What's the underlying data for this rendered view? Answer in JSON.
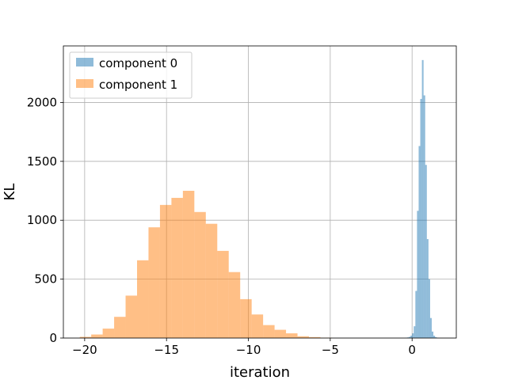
{
  "chart_data": {
    "type": "histogram",
    "title": "",
    "xlabel": "iteration",
    "ylabel": "KL",
    "xlim": [
      -21.3,
      2.7
    ],
    "ylim": [
      0,
      2480
    ],
    "xticks": [
      -20,
      -15,
      -10,
      -5,
      0
    ],
    "xtick_labels": [
      "−20",
      "−15",
      "−10",
      "−5",
      "0"
    ],
    "yticks": [
      0,
      500,
      1000,
      1500,
      2000
    ],
    "ytick_labels": [
      "0",
      "500",
      "1000",
      "1500",
      "2000"
    ],
    "grid": true,
    "legend_position": "top-left",
    "series": [
      {
        "name": "component 0",
        "color": "#1f77b4",
        "alpha": 0.5,
        "bin_edges": [
          -0.4,
          -0.3,
          -0.2,
          -0.1,
          0.0,
          0.1,
          0.2,
          0.3,
          0.4,
          0.5,
          0.6,
          0.7,
          0.8,
          0.9,
          1.0,
          1.1,
          1.2,
          1.3,
          1.4,
          1.5,
          1.6
        ],
        "counts": [
          3,
          5,
          10,
          20,
          40,
          100,
          400,
          1080,
          1630,
          2030,
          2360,
          2060,
          1470,
          840,
          500,
          170,
          55,
          20,
          8,
          3
        ]
      },
      {
        "name": "component 1",
        "color": "#ff7f0e",
        "alpha": 0.5,
        "bin_edges": [
          -20.3,
          -19.6,
          -18.9,
          -18.2,
          -17.5,
          -16.8,
          -16.1,
          -15.4,
          -14.7,
          -14.0,
          -13.3,
          -12.6,
          -11.9,
          -11.2,
          -10.5,
          -9.8,
          -9.1,
          -8.4,
          -7.7,
          -7.0,
          -6.3,
          -5.6,
          -4.9
        ],
        "counts": [
          10,
          30,
          80,
          180,
          360,
          660,
          940,
          1130,
          1190,
          1250,
          1070,
          970,
          740,
          560,
          330,
          200,
          110,
          70,
          40,
          15,
          8,
          3
        ]
      }
    ]
  }
}
